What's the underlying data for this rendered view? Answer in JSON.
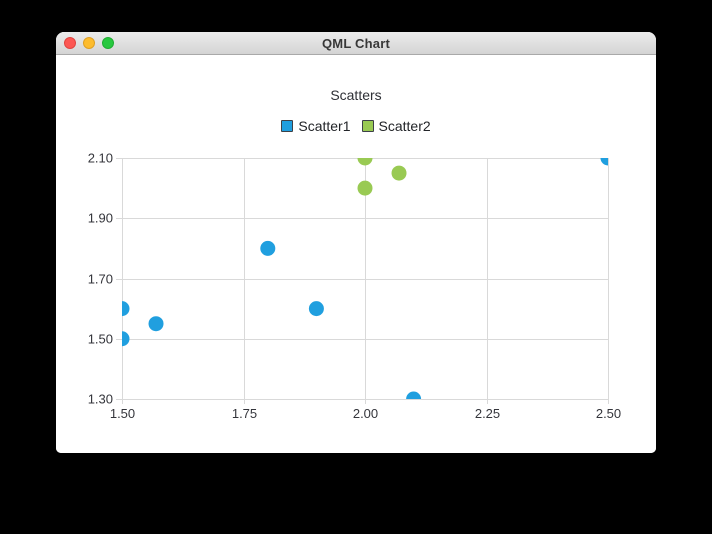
{
  "window": {
    "title": "QML Chart",
    "controls": {
      "close": "close",
      "minimize": "minimize",
      "zoom": "zoom"
    }
  },
  "chart_data": {
    "type": "scatter",
    "title": "Scatters",
    "xlim": [
      1.5,
      2.5
    ],
    "ylim": [
      1.3,
      2.1
    ],
    "x_ticks": [
      "1.50",
      "1.75",
      "2.00",
      "2.25",
      "2.50"
    ],
    "y_ticks": [
      "1.30",
      "1.50",
      "1.70",
      "1.90",
      "2.10"
    ],
    "grid": true,
    "legend_position": "top",
    "marker_size": 15,
    "series": [
      {
        "name": "Scatter1",
        "color": "#209fdf",
        "points": [
          [
            1.5,
            1.5
          ],
          [
            1.5,
            1.6
          ],
          [
            1.57,
            1.55
          ],
          [
            1.8,
            1.8
          ],
          [
            1.9,
            1.6
          ],
          [
            2.1,
            1.3
          ],
          [
            2.5,
            2.1
          ]
        ]
      },
      {
        "name": "Scatter2",
        "color": "#99ca53",
        "points": [
          [
            2.0,
            2.0
          ],
          [
            2.0,
            2.1
          ],
          [
            2.07,
            2.05
          ]
        ]
      }
    ],
    "colors": {
      "gridline": "#d9d9d9",
      "tick_label": "#34353b",
      "legend_marker_border": "#3d4148"
    }
  }
}
